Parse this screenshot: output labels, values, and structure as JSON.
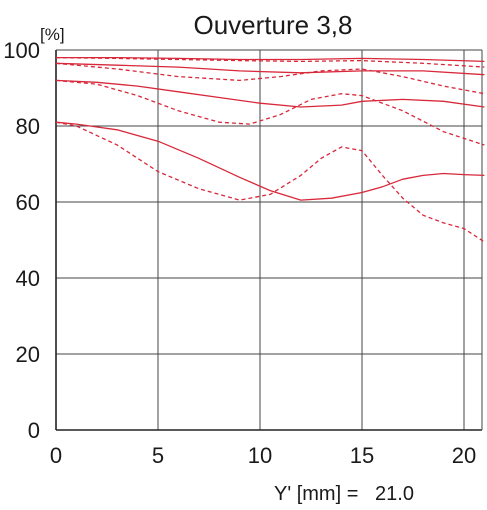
{
  "chart_data": {
    "type": "line",
    "title": "Ouverture 3,8",
    "ylabel": "[%]",
    "xlabel": "Y' [mm] =   21.0",
    "xlim": [
      0,
      21.0
    ],
    "ylim": [
      0,
      100
    ],
    "xticks": [
      "0",
      "5",
      "10",
      "15",
      "20"
    ],
    "yticks": [
      "0",
      "20",
      "40",
      "60",
      "80",
      "100"
    ],
    "grid": true,
    "line_color": "#d8283a",
    "series": [
      {
        "style": "solid",
        "points": [
          [
            0,
            98
          ],
          [
            3,
            98
          ],
          [
            6,
            97.8
          ],
          [
            9,
            97.5
          ],
          [
            12,
            97.5
          ],
          [
            15,
            97.8
          ],
          [
            18,
            97.5
          ],
          [
            21,
            97
          ]
        ]
      },
      {
        "style": "dashed",
        "points": [
          [
            0,
            98
          ],
          [
            3,
            97.8
          ],
          [
            6,
            97.5
          ],
          [
            9,
            97.2
          ],
          [
            12,
            97
          ],
          [
            15,
            97.2
          ],
          [
            18,
            96.5
          ],
          [
            21,
            95.5
          ]
        ]
      },
      {
        "style": "solid",
        "points": [
          [
            0,
            96.5
          ],
          [
            3,
            96
          ],
          [
            6,
            95.5
          ],
          [
            9,
            94.5
          ],
          [
            12,
            94
          ],
          [
            15,
            94.5
          ],
          [
            18,
            94.5
          ],
          [
            21,
            93.5
          ]
        ]
      },
      {
        "style": "dashed",
        "points": [
          [
            0,
            96.5
          ],
          [
            3,
            95
          ],
          [
            6,
            93
          ],
          [
            9,
            92
          ],
          [
            11,
            93
          ],
          [
            13,
            94.5
          ],
          [
            15,
            95
          ],
          [
            17,
            93
          ],
          [
            19,
            90.5
          ],
          [
            21,
            88.5
          ]
        ]
      },
      {
        "style": "solid",
        "points": [
          [
            0,
            92
          ],
          [
            2,
            91.5
          ],
          [
            4,
            90.5
          ],
          [
            6,
            89
          ],
          [
            8,
            87.5
          ],
          [
            10,
            86
          ],
          [
            12,
            85
          ],
          [
            14,
            85.5
          ],
          [
            15,
            86.5
          ],
          [
            17,
            87
          ],
          [
            19,
            86.5
          ],
          [
            21,
            85
          ]
        ]
      },
      {
        "style": "dashed",
        "points": [
          [
            0,
            92
          ],
          [
            2,
            91
          ],
          [
            4,
            88
          ],
          [
            6,
            84
          ],
          [
            8,
            81
          ],
          [
            9.5,
            80.5
          ],
          [
            11,
            83
          ],
          [
            12.5,
            87
          ],
          [
            14,
            88.5
          ],
          [
            15,
            88
          ],
          [
            17,
            84
          ],
          [
            19,
            78.5
          ],
          [
            21,
            75
          ]
        ]
      },
      {
        "style": "solid",
        "points": [
          [
            0,
            81
          ],
          [
            1,
            80.5
          ],
          [
            3,
            79
          ],
          [
            5,
            76
          ],
          [
            7,
            71.5
          ],
          [
            9,
            66.5
          ],
          [
            10.5,
            63
          ],
          [
            12,
            60.5
          ],
          [
            13.5,
            61
          ],
          [
            15,
            62.5
          ],
          [
            16,
            64
          ],
          [
            17,
            66
          ],
          [
            18,
            67
          ],
          [
            19,
            67.5
          ],
          [
            20,
            67.2
          ],
          [
            21,
            67
          ]
        ]
      },
      {
        "style": "dashed",
        "points": [
          [
            0,
            81
          ],
          [
            1,
            80
          ],
          [
            3,
            75
          ],
          [
            5,
            68
          ],
          [
            7,
            63.5
          ],
          [
            9,
            60.5
          ],
          [
            10.5,
            62
          ],
          [
            12,
            67
          ],
          [
            13,
            71.5
          ],
          [
            14,
            74.5
          ],
          [
            15,
            73.5
          ],
          [
            16,
            67
          ],
          [
            17,
            61
          ],
          [
            18,
            56.5
          ],
          [
            19,
            54.5
          ],
          [
            20,
            53
          ],
          [
            21,
            49.5
          ]
        ]
      }
    ]
  }
}
